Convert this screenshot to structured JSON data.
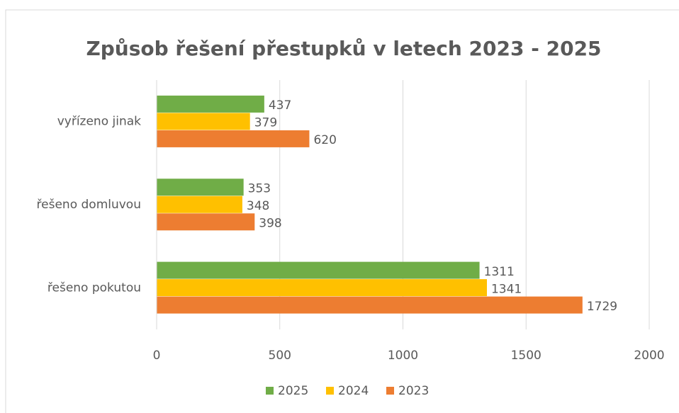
{
  "chart_data": {
    "type": "hbar",
    "title": "Způsob řešení přestupků v letech 2023 - 2025",
    "categories": [
      "vyřízeno jinak",
      "řešeno domluvou",
      "řešeno pokutou"
    ],
    "series": [
      {
        "name": "2025",
        "color": "#70ad47",
        "values": [
          437,
          353,
          1311
        ]
      },
      {
        "name": "2024",
        "color": "#ffc000",
        "values": [
          379,
          348,
          1341
        ]
      },
      {
        "name": "2023",
        "color": "#ed7d31",
        "values": [
          620,
          398,
          1729
        ]
      }
    ],
    "xlim": [
      0,
      2000
    ],
    "xticks": [
      0,
      500,
      1000,
      1500,
      2000
    ],
    "grid": true,
    "legend": "bottom"
  }
}
